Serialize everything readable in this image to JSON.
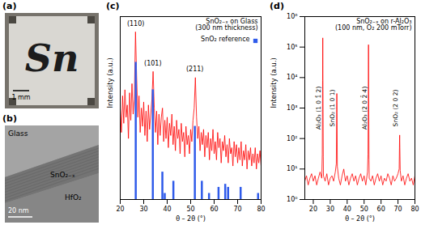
{
  "chart_data": [
    {
      "type": "image",
      "title": "(a)",
      "annotations": [
        "Sn",
        "1 mm"
      ]
    },
    {
      "type": "image",
      "title": "(b)",
      "annotations": [
        "Glass",
        "SnO₂₋ₓ",
        "HfO₂",
        "20 nm"
      ]
    },
    {
      "type": "line",
      "title": "(c)",
      "x_label": "θ – 2θ (°)",
      "y_label": "Intensity (a.u.)",
      "xlim": [
        20,
        80
      ],
      "xticks": [
        20,
        30,
        40,
        50,
        60,
        70,
        80
      ],
      "ylim": [
        0,
        60
      ],
      "tick_labels": "x",
      "series": [
        {
          "name": "SnO₂₋ₓ on Glass\n(300 nm thickness)",
          "type": "line",
          "color": "#ff0000",
          "x": [
            20,
            20.5,
            21,
            21.5,
            22,
            22.5,
            23,
            23.5,
            24,
            24.5,
            25,
            25.5,
            26,
            26.5,
            27,
            27.5,
            28,
            28.5,
            29,
            29.5,
            30,
            30.5,
            31,
            31.5,
            32,
            32.5,
            33,
            33.5,
            34,
            34.5,
            35,
            35.5,
            36,
            36.5,
            37,
            37.5,
            38,
            38.5,
            39,
            39.5,
            40,
            40.5,
            41,
            41.5,
            42,
            42.5,
            43,
            43.5,
            44,
            44.5,
            45,
            45.5,
            46,
            46.5,
            47,
            47.5,
            48,
            48.5,
            49,
            49.5,
            50,
            50.5,
            51,
            51.5,
            52,
            52.5,
            53,
            53.5,
            54,
            54.5,
            55,
            55.5,
            56,
            56.5,
            57,
            57.5,
            58,
            58.5,
            59,
            59.5,
            60,
            60.5,
            61,
            61.5,
            62,
            62.5,
            63,
            63.5,
            64,
            64.5,
            65,
            65.5,
            66,
            66.5,
            67,
            67.5,
            68,
            68.5,
            69,
            69.5,
            70,
            70.5,
            71,
            71.5,
            72,
            72.5,
            73,
            73.5,
            74,
            74.5,
            75,
            75.5,
            76,
            76.5,
            77,
            77.5,
            78,
            78.5,
            79,
            79.5,
            80
          ],
          "values": [
            30,
            22,
            34,
            25,
            36,
            27,
            31,
            20,
            35,
            26,
            38,
            28,
            33,
            55,
            40,
            27,
            34,
            22,
            30,
            24,
            32,
            21,
            29,
            19,
            31,
            23,
            28,
            33,
            42,
            30,
            22,
            29,
            18,
            28,
            21,
            27,
            30,
            19,
            26,
            20,
            27,
            17,
            25,
            21,
            28,
            18,
            24,
            16,
            26,
            20,
            23,
            15,
            25,
            19,
            22,
            14,
            24,
            18,
            21,
            15,
            23,
            19,
            26,
            30,
            40,
            27,
            20,
            24,
            16,
            22,
            18,
            23,
            14,
            21,
            17,
            22,
            13,
            20,
            16,
            23,
            15,
            19,
            13,
            22,
            17,
            20,
            12,
            19,
            16,
            21,
            14,
            18,
            12,
            20,
            15,
            17,
            11,
            19,
            14,
            18,
            12,
            17,
            13,
            19,
            11,
            16,
            13,
            18,
            10,
            16,
            13,
            17,
            11,
            15,
            12,
            17,
            10,
            15,
            12,
            16,
            11
          ]
        },
        {
          "name": "SnO₂ reference",
          "type": "bar",
          "color": "#2f5bea",
          "x": [
            26.61,
            33.89,
            37.95,
            38.97,
            42.64,
            51.78,
            54.76,
            57.82,
            61.87,
            64.72,
            65.94,
            71.28,
            78.71
          ],
          "values": [
            45,
            36,
            9,
            2,
            6,
            24,
            6,
            2,
            4,
            5,
            4,
            4,
            2
          ]
        }
      ],
      "annotations": [
        {
          "text": "(110)",
          "x": 26.6,
          "y": 57
        },
        {
          "text": "(101)",
          "x": 33.9,
          "y": 44
        },
        {
          "text": "(211)",
          "x": 51.8,
          "y": 42
        }
      ]
    },
    {
      "type": "line",
      "title": "(d)",
      "x_label": "θ – 2θ (°)",
      "y_label": "Intensity (a.u.)",
      "log": "y",
      "xlim": [
        15,
        80
      ],
      "xticks": [
        20,
        30,
        40,
        50,
        60,
        70,
        80
      ],
      "ylim": [
        1,
        1000000
      ],
      "yticks": [
        {
          "value": 1,
          "label": "10⁰"
        },
        {
          "value": 10,
          "label": "10¹"
        },
        {
          "value": 100,
          "label": "10²"
        },
        {
          "value": 1000,
          "label": "10³"
        },
        {
          "value": 10000,
          "label": "10⁴"
        },
        {
          "value": 100000,
          "label": "10⁵"
        },
        {
          "value": 1000000,
          "label": "10⁶"
        }
      ],
      "series": [
        {
          "name": "SnO₂₋ₓ on r-Al₂O₃\n(100 nm, O₂ 200 mTorr)",
          "type": "line",
          "color": "#ff0000",
          "x": [
            15,
            16,
            17,
            18,
            19,
            20,
            21,
            22,
            23,
            24,
            25,
            25.3,
            25.5,
            25.6,
            25.7,
            25.9,
            26,
            27,
            28,
            29,
            30,
            31,
            32,
            33,
            33.6,
            33.8,
            33.9,
            34,
            34.2,
            35,
            36,
            37,
            38,
            39,
            40,
            41,
            42,
            43,
            44,
            45,
            46,
            47,
            48,
            49,
            50,
            51,
            52,
            52.3,
            52.5,
            52.6,
            52.7,
            52.9,
            53,
            54,
            55,
            56,
            57,
            58,
            59,
            60,
            61,
            62,
            63,
            64,
            65,
            66,
            67,
            68,
            69,
            70,
            70.7,
            70.9,
            71,
            71.1,
            71.3,
            72,
            73,
            74,
            75,
            76,
            77,
            78,
            79,
            80
          ],
          "values": [
            4,
            6,
            3,
            5,
            7,
            4,
            6,
            3,
            5,
            8,
            5,
            30,
            8000,
            200000,
            6000,
            25,
            6,
            4,
            7,
            3,
            5,
            6,
            4,
            8,
            15,
            900,
            3000,
            700,
            12,
            5,
            3,
            6,
            10,
            4,
            6,
            3,
            5,
            7,
            4,
            6,
            3,
            5,
            7,
            4,
            6,
            3,
            8,
            30,
            5000,
            120000,
            4000,
            20,
            5,
            4,
            6,
            3,
            5,
            7,
            4,
            6,
            3,
            5,
            4,
            7,
            5,
            3,
            6,
            4,
            5,
            7,
            10,
            70,
            130,
            50,
            9,
            4,
            6,
            3,
            5,
            7,
            4,
            5,
            3,
            6
          ]
        }
      ],
      "annotations": [
        {
          "text": "Al₂O₃ (1 0 1̄ 2)",
          "x": 25.6
        },
        {
          "text": "SnO₂ (1 0 1)",
          "x": 33.9
        },
        {
          "text": "Al₂O₃ (2 0 2̄ 4)",
          "x": 52.6
        },
        {
          "text": "SnO₂ (2 0 2)",
          "x": 71.0
        }
      ]
    }
  ]
}
